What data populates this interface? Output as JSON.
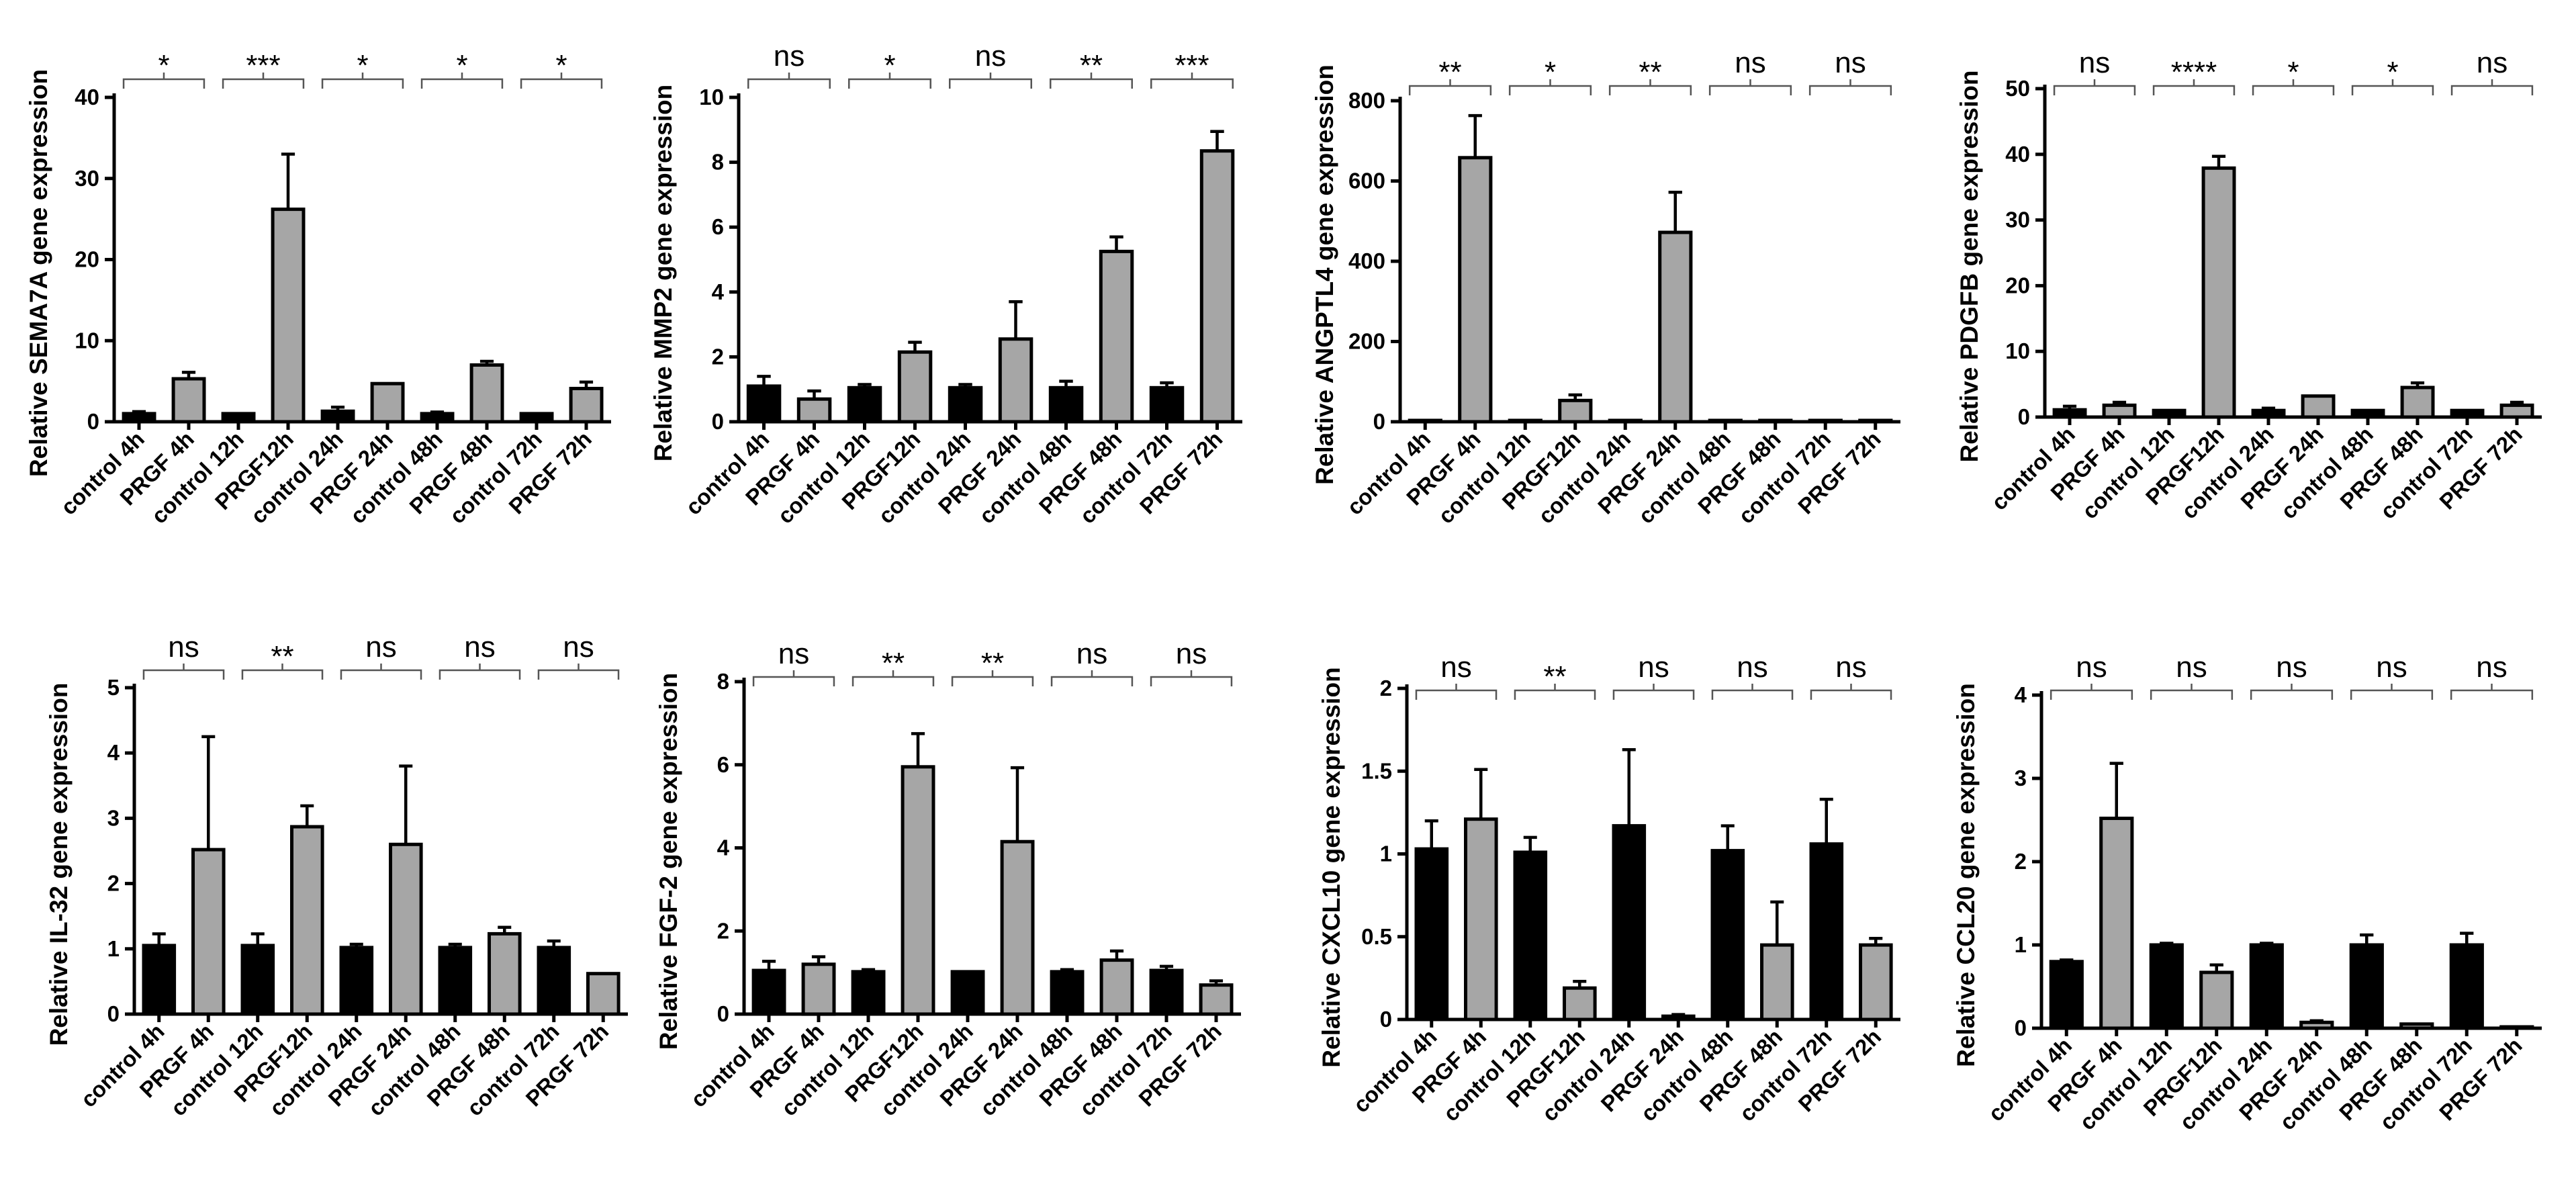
{
  "figure": {
    "layout": "2x4 grid of bar charts"
  },
  "colors": {
    "control": "#000000",
    "prgf": "#a6a6a6",
    "axis": "#000000",
    "bracket": "#555555"
  },
  "chart_data": [
    {
      "type": "bar",
      "title": "",
      "ylabel": "Relative SEMA7A gene expression",
      "ylim": [
        0,
        40
      ],
      "yticks": [
        0,
        10,
        20,
        30,
        40
      ],
      "categories": [
        "control 4h",
        "PRGF 4h",
        "control 12h",
        "PRGF12h",
        "control 24h",
        "PRGF 24h",
        "control 48h",
        "PRGF 48h",
        "control 72h",
        "PRGF 72h"
      ],
      "values": [
        1,
        5.3,
        1,
        26.2,
        1.3,
        4.7,
        1,
        7,
        1,
        4.1
      ],
      "errors": [
        0.25,
        0.8,
        0.15,
        6.8,
        0.5,
        0.15,
        0.2,
        0.45,
        0.15,
        0.8
      ],
      "significance": [
        "*",
        "***",
        "*",
        "*",
        "*"
      ]
    },
    {
      "type": "bar",
      "title": "",
      "ylabel": "Relative MMP2 gene expression",
      "ylim": [
        0,
        10
      ],
      "yticks": [
        0,
        2,
        4,
        6,
        8,
        10
      ],
      "categories": [
        "control 4h",
        "PRGF 4h",
        "control 12h",
        "PRGF12h",
        "control 24h",
        "PRGF 24h",
        "control 48h",
        "PRGF 48h",
        "control 72h",
        "PRGF 72h"
      ],
      "values": [
        1.1,
        0.7,
        1.05,
        2.15,
        1.05,
        2.55,
        1.05,
        5.25,
        1.05,
        8.35
      ],
      "errors": [
        0.3,
        0.25,
        0.1,
        0.3,
        0.1,
        1.15,
        0.2,
        0.45,
        0.15,
        0.6
      ],
      "significance": [
        "ns",
        "*",
        "ns",
        "**",
        "***"
      ]
    },
    {
      "type": "bar",
      "title": "",
      "ylabel": "Relative ANGPTL4 gene expression",
      "ylim": [
        0,
        800
      ],
      "yticks": [
        0,
        200,
        400,
        600,
        800
      ],
      "categories": [
        "control 4h",
        "PRGF 4h",
        "control 12h",
        "PRGF12h",
        "control 24h",
        "PRGF 24h",
        "control 48h",
        "PRGF 48h",
        "control 72h",
        "PRGF 72h"
      ],
      "values": [
        1,
        658,
        1,
        53,
        1,
        472,
        1,
        2,
        1,
        2
      ],
      "errors": [
        0.5,
        105,
        0.5,
        14,
        0.5,
        100,
        0.5,
        0.5,
        0.5,
        0.5
      ],
      "significance": [
        "**",
        "*",
        "**",
        "ns",
        "ns"
      ]
    },
    {
      "type": "bar",
      "title": "",
      "ylabel": "Relative PDGFB gene expression",
      "ylim": [
        0,
        50
      ],
      "yticks": [
        0,
        10,
        20,
        30,
        40,
        50
      ],
      "categories": [
        "control 4h",
        "PRGF 4h",
        "control 12h",
        "PRGF12h",
        "control 24h",
        "PRGF 24h",
        "control 48h",
        "PRGF 48h",
        "control 72h",
        "PRGF 72h"
      ],
      "values": [
        1.1,
        1.8,
        1.0,
        37.9,
        1.0,
        3.2,
        1.0,
        4.5,
        1.0,
        1.8
      ],
      "errors": [
        0.55,
        0.45,
        0.2,
        1.8,
        0.35,
        0.1,
        0.15,
        0.7,
        0.15,
        0.45
      ],
      "significance": [
        "ns",
        "****",
        "*",
        "*",
        "ns"
      ]
    },
    {
      "type": "bar",
      "title": "",
      "ylabel": "Relative IL-32 gene expression",
      "ylim": [
        0,
        5
      ],
      "yticks": [
        0,
        1,
        2,
        3,
        4,
        5
      ],
      "categories": [
        "control 4h",
        "PRGF 4h",
        "control 12h",
        "PRGF12h",
        "control 24h",
        "PRGF 24h",
        "control 48h",
        "PRGF 48h",
        "control 72h",
        "PRGF 72h"
      ],
      "values": [
        1.05,
        2.52,
        1.05,
        2.87,
        1.02,
        2.6,
        1.02,
        1.23,
        1.02,
        0.62
      ],
      "errors": [
        0.18,
        1.73,
        0.18,
        0.32,
        0.05,
        1.2,
        0.05,
        0.1,
        0.1,
        0.01
      ],
      "significance": [
        "ns",
        "**",
        "ns",
        "ns",
        "ns"
      ]
    },
    {
      "type": "bar",
      "title": "",
      "ylabel": "Relative FGF-2 gene expression",
      "ylim": [
        0,
        8
      ],
      "yticks": [
        0,
        2,
        4,
        6,
        8
      ],
      "categories": [
        "control 4h",
        "PRGF 4h",
        "control 12h",
        "PRGF12h",
        "control 24h",
        "PRGF 24h",
        "control 48h",
        "PRGF 48h",
        "control 72h",
        "PRGF 72h"
      ],
      "values": [
        1.05,
        1.2,
        1.02,
        5.95,
        1.02,
        4.15,
        1.02,
        1.3,
        1.05,
        0.7
      ],
      "errors": [
        0.22,
        0.18,
        0.05,
        0.8,
        0.02,
        1.78,
        0.05,
        0.22,
        0.1,
        0.1
      ],
      "significance": [
        "ns",
        "**",
        "**",
        "ns",
        "ns"
      ]
    },
    {
      "type": "bar",
      "title": "",
      "ylabel": "Relative CXCL10 gene expression",
      "ylim": [
        0,
        2.0
      ],
      "yticks": [
        0,
        0.5,
        1.0,
        1.5,
        2.0
      ],
      "categories": [
        "control 4h",
        "PRGF 4h",
        "control 12h",
        "PRGF12h",
        "control 24h",
        "PRGF 24h",
        "control 48h",
        "PRGF 48h",
        "control 72h",
        "PRGF 72h"
      ],
      "values": [
        1.03,
        1.21,
        1.01,
        0.19,
        1.17,
        0.02,
        1.02,
        0.45,
        1.06,
        0.45
      ],
      "errors": [
        0.17,
        0.3,
        0.09,
        0.04,
        0.46,
        0.01,
        0.15,
        0.26,
        0.27,
        0.04
      ],
      "significance": [
        "ns",
        "**",
        "ns",
        "ns",
        "ns"
      ]
    },
    {
      "type": "bar",
      "title": "",
      "ylabel": "Relative CCL20 gene expression",
      "ylim": [
        0,
        4
      ],
      "yticks": [
        0,
        1,
        2,
        3,
        4
      ],
      "categories": [
        "control 4h",
        "PRGF 4h",
        "control 12h",
        "PRGF12h",
        "control 24h",
        "PRGF 24h",
        "control 48h",
        "PRGF 48h",
        "control 72h",
        "PRGF 72h"
      ],
      "values": [
        0.8,
        2.52,
        1.0,
        0.67,
        1.0,
        0.07,
        1.0,
        0.05,
        1.0,
        0.01
      ],
      "errors": [
        0.02,
        0.66,
        0.02,
        0.09,
        0.02,
        0.02,
        0.12,
        0.01,
        0.14,
        0.005
      ],
      "significance": [
        "ns",
        "ns",
        "ns",
        "ns",
        "ns"
      ]
    }
  ]
}
